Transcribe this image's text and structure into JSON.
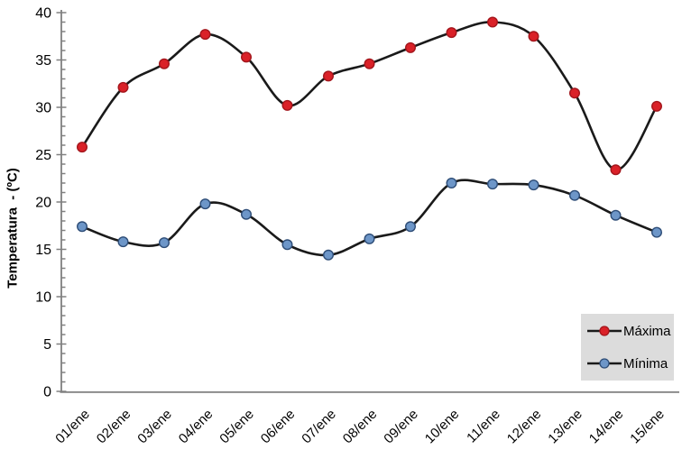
{
  "chart_data": {
    "type": "line",
    "title": "",
    "xlabel": "",
    "ylabel": "Temperatura  - (ºC)",
    "categories": [
      "01/ene",
      "02/ene",
      "03/ene",
      "04/ene",
      "05/ene",
      "06/ene",
      "07/ene",
      "08/ene",
      "09/ene",
      "10/ene",
      "11/ene",
      "12/ene",
      "13/ene",
      "14/ene",
      "15/ene"
    ],
    "series": [
      {
        "key": "maxima",
        "name": "Máxima",
        "values": [
          25.8,
          32.1,
          34.6,
          37.7,
          35.3,
          30.2,
          33.3,
          34.6,
          36.3,
          37.9,
          39.0,
          37.5,
          31.5,
          23.4,
          30.1
        ],
        "marker_fill": "#da2128",
        "marker_stroke": "#a3161c"
      },
      {
        "key": "minima",
        "name": "Mínima",
        "values": [
          17.4,
          15.8,
          15.7,
          19.8,
          18.7,
          15.5,
          14.4,
          16.1,
          17.4,
          22.0,
          21.9,
          21.8,
          20.7,
          18.6,
          16.8
        ],
        "marker_fill": "#6d96c8",
        "marker_stroke": "#2e4d77"
      }
    ],
    "ylim": [
      0,
      40
    ],
    "y_major_step": 5,
    "y_minor_step": 1,
    "y_tick_labels": [
      "0",
      "5",
      "10",
      "15",
      "20",
      "25",
      "30",
      "35",
      "40"
    ],
    "grid": false,
    "smooth_lines": true,
    "line_color": "#1a1a1a",
    "axis_color": "#808080",
    "text_color": "#000000",
    "legend": {
      "position": "bottom-right",
      "background": "#dcdcdc",
      "items": [
        "Máxima",
        "Mínima"
      ]
    }
  }
}
